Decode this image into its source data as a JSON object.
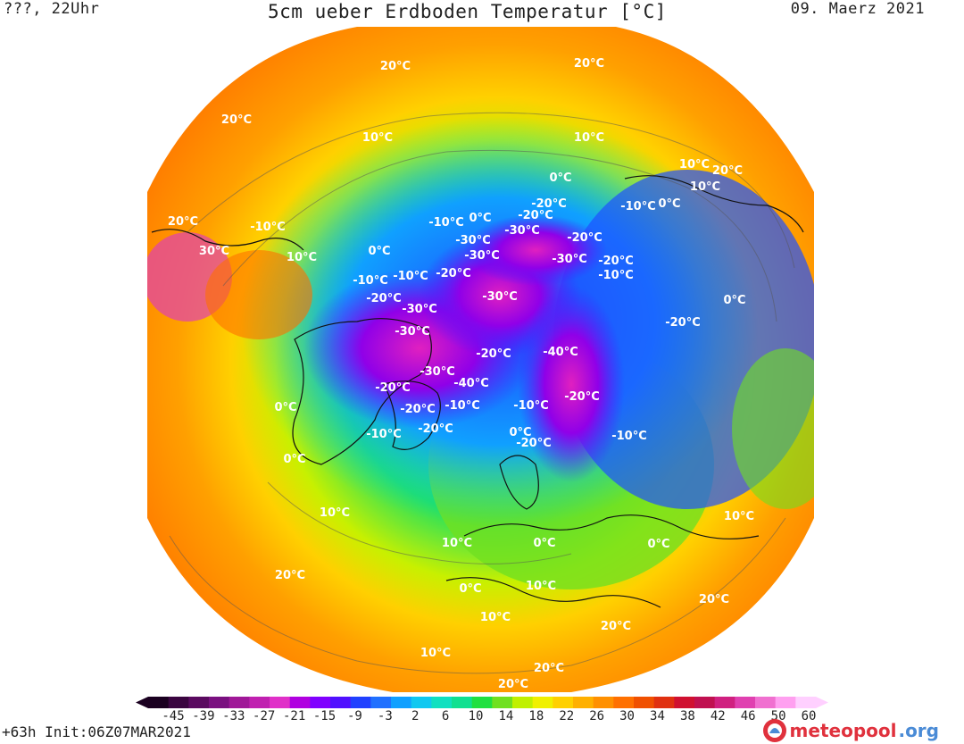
{
  "header": {
    "forecast_time": "???, 22Uhr",
    "title": "5cm ueber Erdboden Temperatur [°C]",
    "date": "09. Maerz 2021"
  },
  "footer": {
    "run_info": "+63h  Init:06Z07MAR2021",
    "brand_name": "meteopool",
    "brand_tld": ".org"
  },
  "legend": {
    "ticks": [
      "-45",
      "-39",
      "-33",
      "-27",
      "-21",
      "-15",
      "-9",
      "-3",
      "2",
      "6",
      "10",
      "14",
      "18",
      "22",
      "26",
      "30",
      "34",
      "38",
      "42",
      "46",
      "50",
      "60"
    ],
    "colors": [
      "#1a0020",
      "#3a0540",
      "#5a0a60",
      "#7a1080",
      "#a01898",
      "#c020b0",
      "#e030c8",
      "#b000e0",
      "#8000ff",
      "#5010ff",
      "#2040ff",
      "#2070ff",
      "#10a0ff",
      "#10c8f0",
      "#10e0c0",
      "#10e090",
      "#20e040",
      "#70e020",
      "#c0f000",
      "#f0f000",
      "#ffd000",
      "#ffb000",
      "#ff9000",
      "#ff7000",
      "#f05000",
      "#e03010",
      "#d01030",
      "#c01050",
      "#d02080",
      "#e040b0",
      "#f070d0",
      "#ffa0f0",
      "#ffd0ff"
    ]
  },
  "map": {
    "iso_labels": [
      "20°C",
      "20°C",
      "20°C",
      "10°C",
      "10°C",
      "10°C",
      "20°C",
      "0°C",
      "-20°C",
      "-10°C",
      "0°C",
      "-20°C",
      "-10°C",
      "0°C",
      "10°C",
      "-30°C",
      "-30°C",
      "-20°C",
      "-10°C",
      "0°C",
      "20°C",
      "30°C",
      "10°C",
      "-20°C",
      "-30°C",
      "-20°C",
      "-10°C",
      "-30°C",
      "-10°C",
      "-10°C",
      "-30°C",
      "-20°C",
      "-30°C",
      "-30°C",
      "-20°C",
      "-40°C",
      "-20°C",
      "-30°C",
      "-40°C",
      "-20°C",
      "-10°C",
      "0°C",
      "-20°C",
      "-20°C",
      "-10°C",
      "0°C",
      "-20°C",
      "-20°C",
      "-10°C",
      "-10°C",
      "0°C",
      "10°C",
      "0°C",
      "10°C",
      "20°C",
      "0°C",
      "10°C",
      "20°C",
      "10°C",
      "0°C",
      "0°C",
      "10°C",
      "20°C",
      "10°C",
      "20°C",
      "20°C"
    ]
  }
}
